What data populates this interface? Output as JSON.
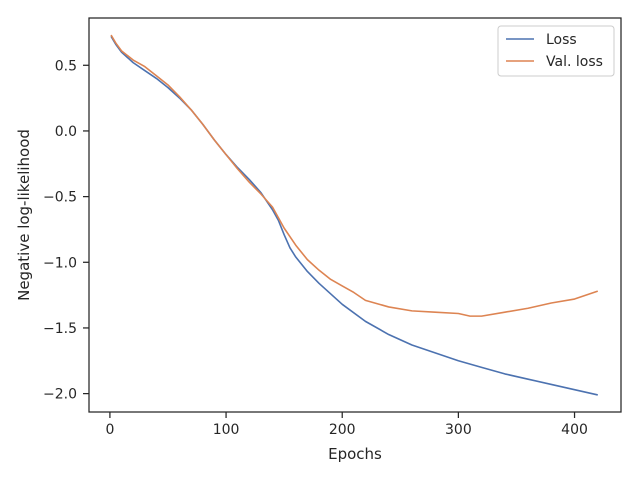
{
  "chart_data": {
    "type": "line",
    "title": "",
    "xlabel": "Epochs",
    "ylabel": "Negative log-likelihood",
    "xlim": [
      -18,
      440
    ],
    "ylim": [
      -2.14,
      0.86
    ],
    "xticks": [
      0,
      100,
      200,
      300,
      400
    ],
    "yticks": [
      0.5,
      0.0,
      -0.5,
      -1.0,
      -1.5,
      -2.0
    ],
    "xtick_labels": [
      "0",
      "100",
      "200",
      "300",
      "400"
    ],
    "ytick_labels": [
      "0.5",
      "0.0",
      "−0.5",
      "−1.0",
      "−1.5",
      "−2.0"
    ],
    "grid": false,
    "legend_position": "top-right",
    "series": [
      {
        "name": "Loss",
        "color": "#4c72b0",
        "x": [
          1,
          5,
          10,
          20,
          30,
          40,
          50,
          60,
          70,
          80,
          90,
          100,
          110,
          120,
          130,
          140,
          145,
          150,
          155,
          160,
          170,
          180,
          190,
          200,
          220,
          240,
          260,
          280,
          300,
          320,
          340,
          360,
          380,
          400,
          420
        ],
        "y": [
          0.72,
          0.66,
          0.6,
          0.52,
          0.46,
          0.4,
          0.33,
          0.25,
          0.16,
          0.05,
          -0.07,
          -0.18,
          -0.28,
          -0.37,
          -0.47,
          -0.6,
          -0.68,
          -0.79,
          -0.89,
          -0.96,
          -1.07,
          -1.16,
          -1.24,
          -1.32,
          -1.45,
          -1.55,
          -1.63,
          -1.69,
          -1.75,
          -1.8,
          -1.85,
          -1.89,
          -1.93,
          -1.97,
          -2.01
        ]
      },
      {
        "name": "Val. loss",
        "color": "#dd8452",
        "x": [
          1,
          5,
          10,
          20,
          30,
          40,
          50,
          60,
          70,
          80,
          90,
          100,
          110,
          120,
          130,
          140,
          145,
          150,
          160,
          170,
          180,
          190,
          200,
          210,
          220,
          240,
          260,
          280,
          300,
          310,
          320,
          340,
          360,
          380,
          400,
          420
        ],
        "y": [
          0.73,
          0.67,
          0.61,
          0.54,
          0.49,
          0.42,
          0.35,
          0.26,
          0.16,
          0.05,
          -0.07,
          -0.18,
          -0.29,
          -0.39,
          -0.48,
          -0.58,
          -0.66,
          -0.74,
          -0.87,
          -0.98,
          -1.06,
          -1.13,
          -1.18,
          -1.23,
          -1.29,
          -1.34,
          -1.37,
          -1.38,
          -1.39,
          -1.41,
          -1.41,
          -1.38,
          -1.35,
          -1.31,
          -1.28,
          -1.22
        ]
      }
    ]
  }
}
